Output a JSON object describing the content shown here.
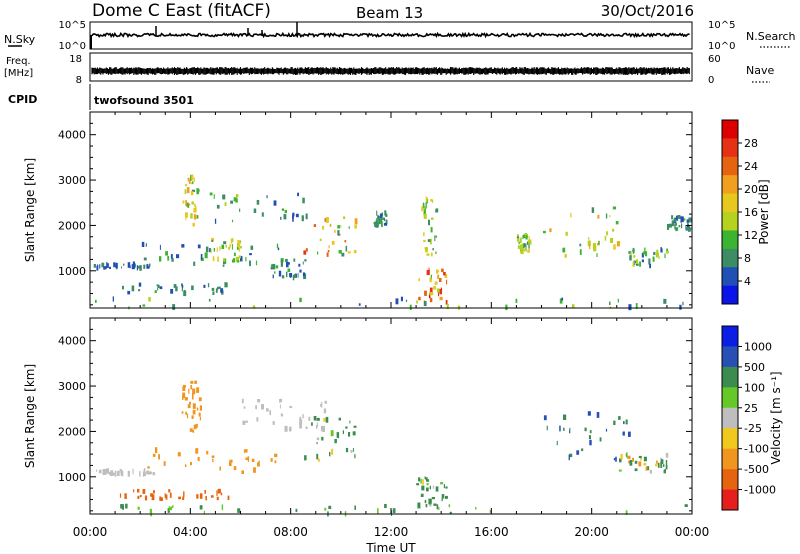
{
  "header": {
    "station": "Dome C East (fitACF)",
    "beam": "Beam 13",
    "date": "30/Oct/2016"
  },
  "strips": {
    "nsky": {
      "label": "N.Sky",
      "y_top": "10^5",
      "y_bottom": "10^0",
      "right_label": "N.Search",
      "right_top": "10^5",
      "right_bottom": "10^0"
    },
    "freq": {
      "label_line1": "Freq.",
      "label_line2": "[MHz]",
      "y_top": "18",
      "y_bottom": "8",
      "right_label": "Nave",
      "right_top": "60",
      "right_bottom": "0"
    },
    "cpid": {
      "label": "CPID",
      "program": "twofsound 3501"
    }
  },
  "chart_data": [
    {
      "type": "heatmap",
      "panel": "power",
      "ylabel": "Slant Range [km]",
      "ylim": [
        180,
        4500
      ],
      "xlim_hours": [
        0,
        24
      ],
      "y_ticks": [
        {
          "value": 1000,
          "label": "1000"
        },
        {
          "value": 2000,
          "label": "2000"
        },
        {
          "value": 3000,
          "label": "3000"
        },
        {
          "value": 4000,
          "label": "4000"
        }
      ],
      "colorbar": {
        "label": "Power [dB]",
        "ticks": [
          "4",
          "8",
          "12",
          "16",
          "20",
          "24",
          "28"
        ],
        "colors": [
          "#0a14e6",
          "#2050b4",
          "#3c8c64",
          "#3cb432",
          "#b4d21e",
          "#e6c81e",
          "#f0a01e",
          "#e6640f",
          "#e63214",
          "#dc0000"
        ]
      },
      "echo_regions": [
        {
          "t": [
            3.6,
            4.4
          ],
          "r": [
            2000,
            3100
          ],
          "level": [
            8,
            22
          ]
        },
        {
          "t": [
            4.6,
            8.5
          ],
          "r": [
            2000,
            2700
          ],
          "level": [
            4,
            14
          ]
        },
        {
          "t": [
            8.5,
            10.6
          ],
          "r": [
            1300,
            2300
          ],
          "level": [
            8,
            26
          ]
        },
        {
          "t": [
            2.0,
            7.5
          ],
          "r": [
            1100,
            1600
          ],
          "level": [
            4,
            12
          ]
        },
        {
          "t": [
            4.8,
            6.0
          ],
          "r": [
            1200,
            1700
          ],
          "level": [
            8,
            20
          ]
        },
        {
          "t": [
            0.1,
            2.5
          ],
          "r": [
            1050,
            1150
          ],
          "level": [
            4,
            8
          ]
        },
        {
          "t": [
            1.0,
            5.5
          ],
          "r": [
            500,
            700
          ],
          "level": [
            4,
            10
          ]
        },
        {
          "t": [
            7.2,
            8.6
          ],
          "r": [
            850,
            1250
          ],
          "level": [
            4,
            10
          ]
        },
        {
          "t": [
            11.3,
            11.8
          ],
          "r": [
            2000,
            2300
          ],
          "level": [
            4,
            10
          ]
        },
        {
          "t": [
            13.0,
            14.2
          ],
          "r": [
            300,
            1100
          ],
          "level": [
            12,
            30
          ]
        },
        {
          "t": [
            13.2,
            13.8
          ],
          "r": [
            1300,
            2600
          ],
          "level": [
            8,
            18
          ]
        },
        {
          "t": [
            17.0,
            17.5
          ],
          "r": [
            1400,
            1800
          ],
          "level": [
            8,
            18
          ]
        },
        {
          "t": [
            18.0,
            21.5
          ],
          "r": [
            1300,
            2400
          ],
          "level": [
            8,
            22
          ]
        },
        {
          "t": [
            21.5,
            23.0
          ],
          "r": [
            1100,
            1500
          ],
          "level": [
            4,
            16
          ]
        },
        {
          "t": [
            23.0,
            23.9
          ],
          "r": [
            1900,
            2200
          ],
          "level": [
            4,
            10
          ]
        },
        {
          "t": [
            0.0,
            24.0
          ],
          "r": [
            180,
            380
          ],
          "level": [
            4,
            14
          ]
        }
      ]
    },
    {
      "type": "heatmap",
      "panel": "velocity",
      "ylabel": "Slant Range [km]",
      "ylim": [
        180,
        4500
      ],
      "xlim_hours": [
        0,
        24
      ],
      "y_ticks": [
        {
          "value": 1000,
          "label": "1000"
        },
        {
          "value": 2000,
          "label": "2000"
        },
        {
          "value": 3000,
          "label": "3000"
        },
        {
          "value": 4000,
          "label": "4000"
        }
      ],
      "colorbar": {
        "label": "Velocity [m s⁻¹]",
        "ticks": [
          "1000",
          "500",
          "100",
          "25",
          "-25",
          "-100",
          "-500",
          "-1000"
        ],
        "colors": [
          "#0a1ee6",
          "#2850b4",
          "#3c8c50",
          "#64c828",
          "#bebebe",
          "#f0c81e",
          "#f0961e",
          "#e6640f",
          "#e61e1e"
        ]
      },
      "echo_regions": [
        {
          "t": [
            3.6,
            4.4
          ],
          "r": [
            2000,
            3100
          ],
          "v": [
            -500,
            -100
          ]
        },
        {
          "t": [
            6.0,
            9.5
          ],
          "r": [
            2000,
            2700
          ],
          "v": [
            -25,
            25
          ]
        },
        {
          "t": [
            8.5,
            10.6
          ],
          "r": [
            1300,
            2300
          ],
          "v": [
            -100,
            500
          ]
        },
        {
          "t": [
            2.0,
            7.5
          ],
          "r": [
            1100,
            1600
          ],
          "v": [
            -500,
            -200
          ]
        },
        {
          "t": [
            0.1,
            2.5
          ],
          "r": [
            1050,
            1150
          ],
          "v": [
            -25,
            25
          ]
        },
        {
          "t": [
            1.0,
            5.5
          ],
          "r": [
            500,
            700
          ],
          "v": [
            -800,
            -500
          ]
        },
        {
          "t": [
            13.0,
            14.2
          ],
          "r": [
            300,
            1100
          ],
          "v": [
            -100,
            500
          ]
        },
        {
          "t": [
            18.0,
            21.5
          ],
          "r": [
            1300,
            2400
          ],
          "v": [
            100,
            1000
          ]
        },
        {
          "t": [
            21.0,
            23.0
          ],
          "r": [
            1100,
            1500
          ],
          "v": [
            -200,
            500
          ]
        },
        {
          "t": [
            0.0,
            24.0
          ],
          "r": [
            180,
            380
          ],
          "v": [
            25,
            200
          ]
        }
      ]
    }
  ],
  "x_axis": {
    "label": "Time UT",
    "ticks": [
      {
        "hour": 0,
        "label": "00:00"
      },
      {
        "hour": 4,
        "label": "04:00"
      },
      {
        "hour": 8,
        "label": "08:00"
      },
      {
        "hour": 12,
        "label": "12:00"
      },
      {
        "hour": 16,
        "label": "16:00"
      },
      {
        "hour": 20,
        "label": "20:00"
      },
      {
        "hour": 24,
        "label": "00:00"
      }
    ]
  }
}
